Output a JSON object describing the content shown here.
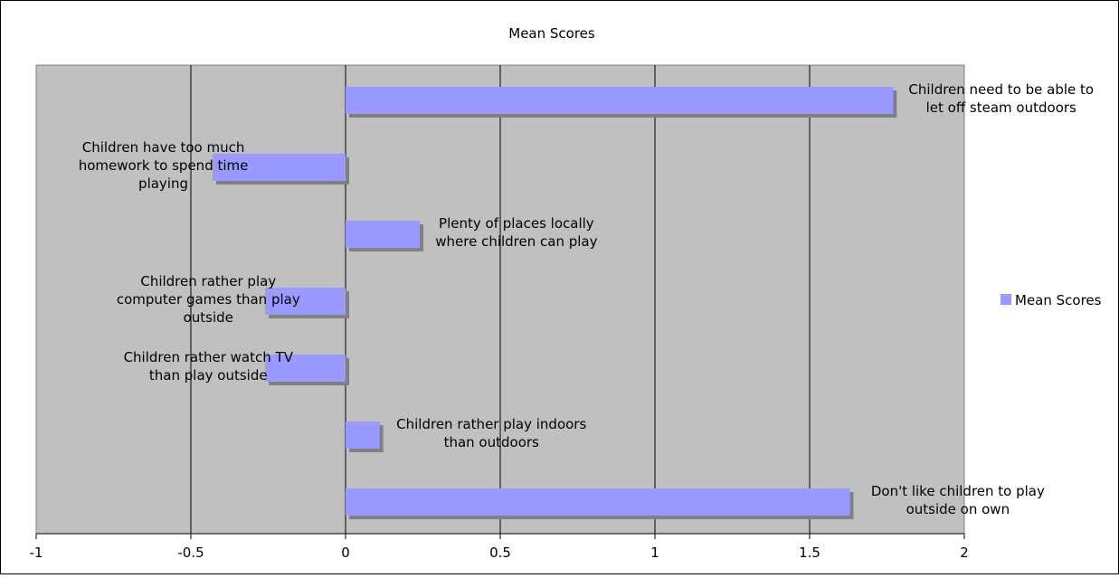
{
  "chart_data": {
    "type": "bar",
    "orientation": "horizontal",
    "title": "Mean Scores",
    "xlabel": "",
    "ylabel": "",
    "xlim": [
      -1,
      2
    ],
    "xticks": [
      "-1",
      "-0.5",
      "0",
      "0.5",
      "1",
      "1.5",
      "2"
    ],
    "grid": "vertical-major",
    "legend_position": "right",
    "series": [
      {
        "name": "Mean Scores",
        "color": "#9999ff",
        "categories": [
          [
            "Children need to be able to",
            "let off steam outdoors"
          ],
          [
            "Children have too much",
            "homework to spend time",
            "playing"
          ],
          [
            "Plenty of places locally",
            "where children can play"
          ],
          [
            "Children rather play",
            "computer games than play",
            "outside"
          ],
          [
            "Children rather watch TV",
            "than play outside"
          ],
          [
            "Children rather play indoors",
            "than outdoors"
          ],
          [
            "Don't like children to play",
            "outside on own"
          ]
        ],
        "values": [
          1.77,
          -0.43,
          0.24,
          -0.26,
          -0.26,
          0.11,
          1.63
        ]
      }
    ],
    "colors": {
      "plot_background": "#c0c0c0",
      "bar": "#9999ff",
      "bar_shadow": "#808080",
      "gridline": "#000000"
    }
  }
}
